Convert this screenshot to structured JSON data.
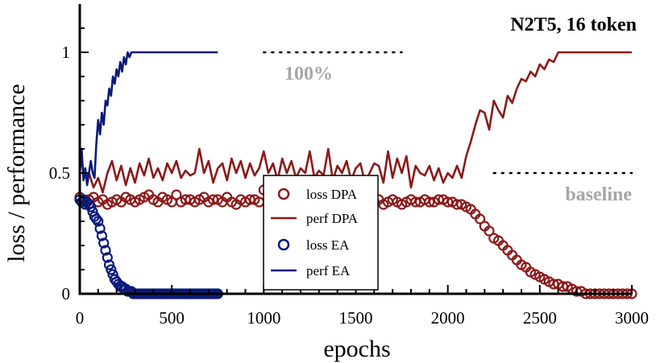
{
  "chart_data": {
    "type": "line",
    "title": "N2T5, 16 token",
    "xlabel": "epochs",
    "ylabel": "loss / performance",
    "xlim": [
      0,
      3000
    ],
    "ylim": [
      0,
      1.2
    ],
    "x_ticks": [
      0,
      500,
      1000,
      1500,
      2000,
      2500,
      3000
    ],
    "y_ticks": [
      0,
      0.5,
      1
    ],
    "x_tick_labels": [
      "0",
      "500",
      "1000",
      "1500",
      "2000",
      "2500",
      "3000"
    ],
    "y_tick_labels": [
      "0",
      "0.5",
      "1"
    ],
    "reference_lines": [
      {
        "name": "100%",
        "y": 1.0,
        "x_start": 1000,
        "x_end": 1750
      },
      {
        "name": "baseline",
        "y": 0.5,
        "x_start": 2250,
        "x_end": 3000
      }
    ],
    "legend_position": "center",
    "series": [
      {
        "name": "loss DPA",
        "style": "circles",
        "color": "#8b1a1a",
        "x": [
          0,
          25,
          50,
          75,
          100,
          125,
          150,
          175,
          200,
          225,
          250,
          275,
          300,
          325,
          350,
          375,
          400,
          425,
          450,
          475,
          500,
          525,
          550,
          575,
          600,
          625,
          650,
          675,
          700,
          725,
          750,
          775,
          800,
          825,
          850,
          875,
          900,
          925,
          950,
          975,
          1000,
          1025,
          1050,
          1075,
          1100,
          1125,
          1150,
          1175,
          1200,
          1225,
          1250,
          1275,
          1300,
          1325,
          1350,
          1375,
          1400,
          1425,
          1450,
          1475,
          1500,
          1525,
          1550,
          1575,
          1600,
          1625,
          1650,
          1675,
          1700,
          1725,
          1750,
          1775,
          1800,
          1825,
          1850,
          1875,
          1900,
          1925,
          1950,
          1975,
          2000,
          2025,
          2050,
          2075,
          2100,
          2125,
          2150,
          2175,
          2200,
          2225,
          2250,
          2275,
          2300,
          2325,
          2350,
          2375,
          2400,
          2425,
          2450,
          2475,
          2500,
          2525,
          2550,
          2575,
          2600,
          2625,
          2650,
          2675,
          2700,
          2725,
          2750,
          2775,
          2800,
          2825,
          2850,
          2875,
          2900,
          2925,
          2950,
          2975,
          3000
        ],
        "values": [
          0.4,
          0.38,
          0.39,
          0.4,
          0.38,
          0.39,
          0.37,
          0.38,
          0.39,
          0.38,
          0.4,
          0.39,
          0.38,
          0.39,
          0.4,
          0.41,
          0.39,
          0.38,
          0.4,
          0.39,
          0.38,
          0.41,
          0.38,
          0.39,
          0.39,
          0.38,
          0.39,
          0.4,
          0.38,
          0.39,
          0.39,
          0.38,
          0.4,
          0.38,
          0.37,
          0.39,
          0.38,
          0.39,
          0.39,
          0.38,
          0.43,
          0.39,
          0.38,
          0.4,
          0.39,
          0.39,
          0.38,
          0.39,
          0.4,
          0.38,
          0.39,
          0.39,
          0.38,
          0.4,
          0.39,
          0.38,
          0.39,
          0.39,
          0.38,
          0.4,
          0.39,
          0.38,
          0.39,
          0.38,
          0.38,
          0.39,
          0.37,
          0.38,
          0.39,
          0.38,
          0.37,
          0.38,
          0.39,
          0.38,
          0.38,
          0.39,
          0.38,
          0.38,
          0.39,
          0.39,
          0.38,
          0.38,
          0.37,
          0.37,
          0.36,
          0.35,
          0.33,
          0.31,
          0.28,
          0.26,
          0.23,
          0.22,
          0.2,
          0.18,
          0.16,
          0.14,
          0.12,
          0.11,
          0.09,
          0.08,
          0.07,
          0.06,
          0.05,
          0.04,
          0.04,
          0.03,
          0.03,
          0.02,
          0.01,
          0.01,
          0.0,
          0.0,
          0.0,
          0.0,
          0.0,
          0.0,
          0.0,
          0.0,
          0.0,
          0.0,
          0.0
        ]
      },
      {
        "name": "perf DPA",
        "style": "line",
        "color": "#8b1a1a",
        "x": [
          0,
          25,
          50,
          75,
          100,
          125,
          150,
          175,
          200,
          225,
          250,
          275,
          300,
          325,
          350,
          375,
          400,
          425,
          450,
          475,
          500,
          525,
          550,
          575,
          600,
          625,
          650,
          675,
          700,
          725,
          750,
          775,
          800,
          825,
          850,
          875,
          900,
          925,
          950,
          975,
          1000,
          1025,
          1050,
          1075,
          1100,
          1125,
          1150,
          1175,
          1200,
          1225,
          1250,
          1275,
          1300,
          1325,
          1350,
          1375,
          1400,
          1425,
          1450,
          1475,
          1500,
          1525,
          1550,
          1575,
          1600,
          1625,
          1650,
          1675,
          1700,
          1725,
          1750,
          1775,
          1800,
          1825,
          1850,
          1875,
          1900,
          1925,
          1950,
          1975,
          2000,
          2025,
          2050,
          2075,
          2100,
          2125,
          2150,
          2175,
          2200,
          2225,
          2250,
          2275,
          2300,
          2325,
          2350,
          2375,
          2400,
          2425,
          2450,
          2475,
          2500,
          2525,
          2550,
          2575,
          2600,
          2625,
          2650,
          2675,
          2700,
          2725,
          2750,
          2775,
          2800,
          2825,
          2850,
          2875,
          2900,
          2925,
          2950,
          2975,
          3000
        ],
        "values": [
          0.6,
          0.48,
          0.5,
          0.44,
          0.48,
          0.42,
          0.5,
          0.55,
          0.47,
          0.53,
          0.45,
          0.52,
          0.46,
          0.54,
          0.49,
          0.56,
          0.48,
          0.52,
          0.47,
          0.54,
          0.5,
          0.55,
          0.48,
          0.51,
          0.49,
          0.5,
          0.6,
          0.5,
          0.55,
          0.46,
          0.52,
          0.54,
          0.47,
          0.56,
          0.5,
          0.55,
          0.48,
          0.54,
          0.49,
          0.52,
          0.59,
          0.5,
          0.54,
          0.47,
          0.56,
          0.5,
          0.55,
          0.48,
          0.52,
          0.5,
          0.59,
          0.48,
          0.51,
          0.49,
          0.6,
          0.47,
          0.53,
          0.5,
          0.55,
          0.47,
          0.52,
          0.54,
          0.46,
          0.5,
          0.54,
          0.53,
          0.46,
          0.59,
          0.48,
          0.56,
          0.5,
          0.57,
          0.44,
          0.53,
          0.5,
          0.49,
          0.53,
          0.47,
          0.52,
          0.46,
          0.5,
          0.48,
          0.53,
          0.48,
          0.57,
          0.63,
          0.7,
          0.76,
          0.75,
          0.68,
          0.8,
          0.76,
          0.73,
          0.82,
          0.79,
          0.85,
          0.89,
          0.88,
          0.92,
          0.9,
          0.95,
          0.93,
          0.97,
          0.96,
          1.0,
          1.0,
          1.0,
          1.0,
          1.0,
          1.0,
          1.0,
          1.0,
          1.0,
          1.0,
          1.0,
          1.0,
          1.0,
          1.0,
          1.0,
          1.0,
          1.0
        ]
      },
      {
        "name": "loss EA",
        "style": "circles",
        "color": "#0a1a7a",
        "x": [
          0,
          10,
          20,
          30,
          40,
          50,
          60,
          70,
          80,
          90,
          100,
          110,
          120,
          130,
          140,
          150,
          160,
          170,
          180,
          190,
          200,
          210,
          220,
          230,
          240,
          250,
          260,
          270,
          280,
          290,
          300,
          310,
          320,
          330,
          340,
          350,
          360,
          370,
          380,
          390,
          400,
          410,
          420,
          430,
          440,
          450,
          460,
          470,
          480,
          490,
          500,
          510,
          520,
          530,
          540,
          550,
          560,
          570,
          580,
          590,
          600,
          610,
          620,
          630,
          640,
          650,
          660,
          670,
          680,
          690,
          700,
          710,
          720,
          730,
          740,
          750
        ],
        "values": [
          0.39,
          0.38,
          0.39,
          0.37,
          0.38,
          0.37,
          0.36,
          0.34,
          0.32,
          0.31,
          0.3,
          0.27,
          0.24,
          0.21,
          0.18,
          0.15,
          0.12,
          0.1,
          0.08,
          0.06,
          0.05,
          0.04,
          0.03,
          0.03,
          0.02,
          0.02,
          0.01,
          0.01,
          0.01,
          0.0,
          0.0,
          0.0,
          0.0,
          0.0,
          0.0,
          0.0,
          0.0,
          0.0,
          0.0,
          0.0,
          0.0,
          0.0,
          0.0,
          0.0,
          0.0,
          0.0,
          0.0,
          0.0,
          0.0,
          0.0,
          0.0,
          0.0,
          0.0,
          0.0,
          0.0,
          0.0,
          0.0,
          0.0,
          0.0,
          0.0,
          0.0,
          0.0,
          0.0,
          0.0,
          0.0,
          0.0,
          0.0,
          0.0,
          0.0,
          0.0,
          0.0,
          0.0,
          0.0,
          0.0,
          0.0,
          0.0
        ]
      },
      {
        "name": "perf EA",
        "style": "line",
        "color": "#0a1a7a",
        "x": [
          0,
          10,
          20,
          30,
          40,
          50,
          60,
          70,
          80,
          90,
          100,
          110,
          120,
          130,
          140,
          150,
          160,
          170,
          180,
          190,
          200,
          210,
          220,
          230,
          240,
          250,
          260,
          270,
          280,
          290,
          300,
          325,
          350,
          375,
          400,
          450,
          500,
          550,
          600,
          650,
          700,
          750
        ],
        "values": [
          0.5,
          0.6,
          0.47,
          0.52,
          0.45,
          0.5,
          0.55,
          0.5,
          0.48,
          0.62,
          0.72,
          0.66,
          0.75,
          0.7,
          0.8,
          0.78,
          0.85,
          0.82,
          0.9,
          0.87,
          0.93,
          0.9,
          0.96,
          0.92,
          0.98,
          0.95,
          1.0,
          0.98,
          1.0,
          1.0,
          1.0,
          1.0,
          1.0,
          1.0,
          1.0,
          1.0,
          1.0,
          1.0,
          1.0,
          1.0,
          1.0,
          1.0
        ]
      }
    ]
  }
}
